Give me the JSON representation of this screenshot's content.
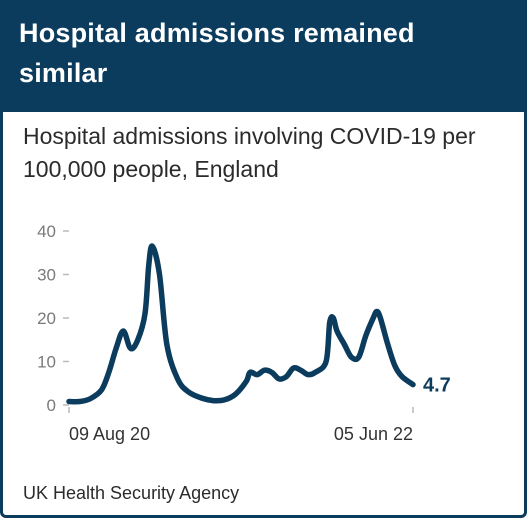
{
  "card": {
    "title": "Hospital admissions remained similar",
    "subtitle": "Hospital admissions involving COVID-19 per 100,000 people, England",
    "source": "UK Health Security Agency"
  },
  "colors": {
    "brand": "#0b3c5d",
    "axis": "#bbbbbb",
    "tick_text": "#7a7a7a"
  },
  "chart_data": {
    "type": "line",
    "title": "Hospital admissions involving COVID-19 per 100,000 people, England",
    "xlabel": "",
    "ylabel": "",
    "ylim": [
      0,
      40
    ],
    "yticks": [
      0,
      10,
      20,
      30,
      40
    ],
    "ytick_labels": [
      "0",
      "10",
      "20",
      "30",
      "40"
    ],
    "x_start": "2020-08-09",
    "x_end": "2022-06-05",
    "xtick_labels": [
      "09 Aug 20",
      "05 Jun 22"
    ],
    "end_label": "4.7",
    "grid": false,
    "legend": "none",
    "x": [
      "2020-08-09",
      "2020-08-30",
      "2020-09-20",
      "2020-10-11",
      "2020-10-25",
      "2020-11-08",
      "2020-11-22",
      "2020-12-06",
      "2020-12-20",
      "2021-01-03",
      "2021-01-10",
      "2021-01-17",
      "2021-01-31",
      "2021-02-14",
      "2021-03-07",
      "2021-03-28",
      "2021-04-25",
      "2021-05-16",
      "2021-06-06",
      "2021-06-27",
      "2021-07-18",
      "2021-07-25",
      "2021-08-08",
      "2021-08-22",
      "2021-09-05",
      "2021-09-19",
      "2021-10-03",
      "2021-10-17",
      "2021-10-31",
      "2021-11-14",
      "2021-11-28",
      "2021-12-19",
      "2021-12-26",
      "2022-01-02",
      "2022-01-09",
      "2022-01-23",
      "2022-02-06",
      "2022-02-20",
      "2022-03-06",
      "2022-03-20",
      "2022-03-27",
      "2022-04-03",
      "2022-04-17",
      "2022-05-01",
      "2022-05-15",
      "2022-06-05"
    ],
    "series": [
      {
        "name": "",
        "values": [
          0.8,
          0.8,
          1.5,
          3.5,
          7.5,
          13,
          17,
          13,
          15,
          21,
          32,
          36.5,
          30,
          14,
          6,
          3,
          1.5,
          1,
          1.2,
          2.5,
          5.5,
          7.5,
          7,
          8,
          7.5,
          6,
          6.5,
          8.5,
          8,
          7,
          7.5,
          10,
          19,
          20,
          17,
          14,
          11,
          11,
          16,
          20,
          21.5,
          20,
          14,
          9,
          6.5,
          4.7
        ]
      }
    ]
  }
}
